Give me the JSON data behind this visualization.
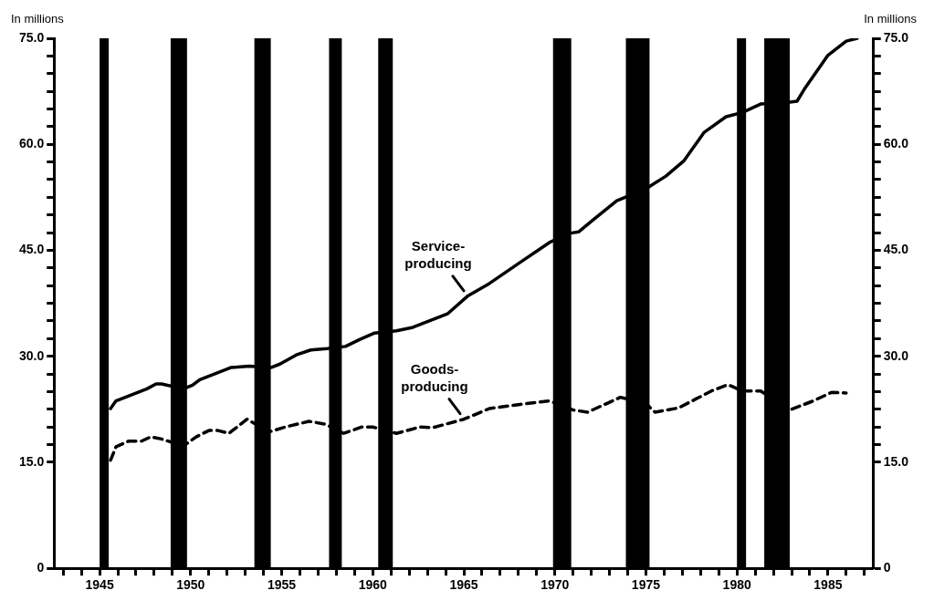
{
  "chart_data": {
    "type": "line",
    "ylabel": "In millions",
    "y2label": "In millions",
    "xlim": [
      1942.5,
      1987.5
    ],
    "xticks": [
      {
        "value": 1943,
        "label": null
      },
      {
        "value": 1944,
        "label": null
      },
      1945,
      {
        "value": 1946,
        "label": null
      },
      {
        "value": 1947,
        "label": null
      },
      {
        "value": 1948,
        "label": null
      },
      {
        "value": 1949,
        "label": null
      },
      1950,
      {
        "value": 1951,
        "label": null
      },
      {
        "value": 1952,
        "label": null
      },
      {
        "value": 1953,
        "label": null
      },
      {
        "value": 1954,
        "label": null
      },
      1955,
      {
        "value": 1956,
        "label": null
      },
      {
        "value": 1957,
        "label": null
      },
      {
        "value": 1958,
        "label": null
      },
      {
        "value": 1959,
        "label": null
      },
      1960,
      {
        "value": 1961,
        "label": null
      },
      {
        "value": 1962,
        "label": null
      },
      {
        "value": 1963,
        "label": null
      },
      {
        "value": 1964,
        "label": null
      },
      1965,
      {
        "value": 1966,
        "label": null
      },
      {
        "value": 1967,
        "label": null
      },
      {
        "value": 1968,
        "label": null
      },
      {
        "value": 1969,
        "label": null
      },
      1970,
      {
        "value": 1971,
        "label": null
      },
      {
        "value": 1972,
        "label": null
      },
      {
        "value": 1973,
        "label": null
      },
      {
        "value": 1974,
        "label": null
      },
      1975,
      {
        "value": 1976,
        "label": null
      },
      {
        "value": 1977,
        "label": null
      },
      {
        "value": 1978,
        "label": null
      },
      {
        "value": 1979,
        "label": null
      },
      1980,
      {
        "value": 1981,
        "label": null
      },
      {
        "value": 1982,
        "label": null
      },
      {
        "value": 1983,
        "label": null
      },
      {
        "value": 1984,
        "label": null
      },
      1985,
      {
        "value": 1986,
        "label": null
      },
      {
        "value": 1987,
        "label": null
      }
    ],
    "ylim": [
      0,
      75
    ],
    "yticks": [
      0,
      {
        "value": 15,
        "label": "15.0"
      },
      {
        "value": 17.5,
        "label": null
      },
      {
        "value": 20,
        "label": null
      },
      {
        "value": 22.5,
        "label": null
      },
      {
        "value": 25,
        "label": null
      },
      {
        "value": 27.5,
        "label": null
      },
      {
        "value": 30,
        "label": "30.0"
      },
      {
        "value": 32.5,
        "label": null
      },
      {
        "value": 35,
        "label": null
      },
      {
        "value": 37.5,
        "label": null
      },
      {
        "value": 40,
        "label": null
      },
      {
        "value": 42.5,
        "label": null
      },
      {
        "value": 45,
        "label": "45.0"
      },
      {
        "value": 47.5,
        "label": null
      },
      {
        "value": 50,
        "label": null
      },
      {
        "value": 52.5,
        "label": null
      },
      {
        "value": 55,
        "label": null
      },
      {
        "value": 57.5,
        "label": null
      },
      {
        "value": 60,
        "label": "60.0"
      },
      {
        "value": 62.5,
        "label": null
      },
      {
        "value": 65,
        "label": null
      },
      {
        "value": 67.5,
        "label": null
      },
      {
        "value": 70,
        "label": null
      },
      {
        "value": 72.5,
        "label": null
      },
      {
        "value": 75,
        "label": "75.0"
      }
    ],
    "y2lim": [
      0,
      75
    ],
    "y2ticks": [
      0,
      {
        "value": 15,
        "label": "15.0"
      },
      {
        "value": 17.5,
        "label": null
      },
      {
        "value": 20,
        "label": null
      },
      {
        "value": 22.5,
        "label": null
      },
      {
        "value": 25,
        "label": null
      },
      {
        "value": 27.5,
        "label": null
      },
      {
        "value": 30,
        "label": "30.0"
      },
      {
        "value": 32.5,
        "label": null
      },
      {
        "value": 35,
        "label": null
      },
      {
        "value": 37.5,
        "label": null
      },
      {
        "value": 40,
        "label": null
      },
      {
        "value": 42.5,
        "label": null
      },
      {
        "value": 45,
        "label": "45.0"
      },
      {
        "value": 47.5,
        "label": null
      },
      {
        "value": 50,
        "label": null
      },
      {
        "value": 52.5,
        "label": null
      },
      {
        "value": 55,
        "label": null
      },
      {
        "value": 57.5,
        "label": null
      },
      {
        "value": 60,
        "label": "60.0"
      },
      {
        "value": 62.5,
        "label": null
      },
      {
        "value": 65,
        "label": null
      },
      {
        "value": 67.5,
        "label": null
      },
      {
        "value": 70,
        "label": null
      },
      {
        "value": 72.5,
        "label": null
      },
      {
        "value": 75,
        "label": "75.0"
      }
    ],
    "series": [
      {
        "name": "Service-producing",
        "color": "#000000",
        "line_style": "solid",
        "x": [
          1945.6,
          1945.9,
          1946.8,
          1947.6,
          1948.1,
          1948.4,
          1949.6,
          1950.1,
          1950.5,
          1951.4,
          1952.2,
          1953.2,
          1954.4,
          1954.9,
          1955.8,
          1956.6,
          1957.5,
          1958.5,
          1959.3,
          1960.1,
          1961.3,
          1962.2,
          1963.3,
          1964.1,
          1965.2,
          1966.4,
          1968.1,
          1969.7,
          1970.8,
          1971.3,
          1972.1,
          1973.4,
          1975.0,
          1976.1,
          1977.1,
          1978.2,
          1979.4,
          1980.3,
          1981.3,
          1982.7,
          1983.3,
          1983.7,
          1985.0,
          1986.0,
          1986.6
        ],
        "values": [
          22.6,
          23.7,
          24.6,
          25.4,
          26.1,
          26.1,
          25.4,
          25.9,
          26.7,
          27.6,
          28.4,
          28.6,
          28.4,
          28.9,
          30.2,
          30.9,
          31.1,
          31.4,
          32.4,
          33.3,
          33.6,
          34.1,
          35.2,
          36.0,
          38.5,
          40.3,
          43.3,
          46.1,
          47.4,
          47.6,
          49.3,
          52.0,
          53.7,
          55.5,
          57.7,
          61.7,
          63.9,
          64.5,
          65.7,
          65.9,
          66.1,
          67.8,
          72.6,
          74.6,
          75.0
        ]
      },
      {
        "name": "Goods-producing",
        "color": "#000000",
        "line_style": "dashed",
        "x": [
          1945.6,
          1945.9,
          1946.6,
          1947.3,
          1947.8,
          1948.4,
          1949.6,
          1950.3,
          1951.0,
          1951.5,
          1952.1,
          1953.1,
          1954.3,
          1955.2,
          1956.5,
          1957.4,
          1958.4,
          1959.4,
          1960.0,
          1961.3,
          1962.6,
          1963.3,
          1965.0,
          1966.4,
          1968.1,
          1969.7,
          1971.0,
          1971.8,
          1973.6,
          1975.0,
          1975.5,
          1976.8,
          1978.6,
          1979.5,
          1980.3,
          1981.3,
          1982.9,
          1984.2,
          1985.2,
          1986.0
        ],
        "values": [
          15.3,
          17.2,
          18.0,
          18.0,
          18.6,
          18.3,
          17.3,
          18.6,
          19.5,
          19.5,
          19.1,
          21.1,
          19.3,
          20.0,
          20.8,
          20.4,
          19.1,
          20.0,
          20.0,
          19.1,
          20.0,
          19.9,
          21.1,
          22.6,
          23.2,
          23.7,
          22.4,
          22.1,
          24.2,
          23.3,
          22.1,
          22.7,
          25.1,
          26.0,
          25.1,
          25.1,
          22.4,
          23.7,
          24.9,
          24.8
        ]
      }
    ],
    "bands": [
      {
        "axis": "x",
        "from": 1945.0,
        "to": 1945.5,
        "color": "#000000"
      },
      {
        "axis": "x",
        "from": 1948.9,
        "to": 1949.8,
        "color": "#000000"
      },
      {
        "axis": "x",
        "from": 1953.5,
        "to": 1954.4,
        "color": "#000000"
      },
      {
        "axis": "x",
        "from": 1957.6,
        "to": 1958.3,
        "color": "#000000"
      },
      {
        "axis": "x",
        "from": 1960.3,
        "to": 1961.1,
        "color": "#000000"
      },
      {
        "axis": "x",
        "from": 1969.9,
        "to": 1970.9,
        "color": "#000000"
      },
      {
        "axis": "x",
        "from": 1973.9,
        "to": 1975.2,
        "color": "#000000"
      },
      {
        "axis": "x",
        "from": 1980.0,
        "to": 1980.5,
        "color": "#000000"
      },
      {
        "axis": "x",
        "from": 1981.5,
        "to": 1982.9,
        "color": "#000000"
      }
    ]
  }
}
